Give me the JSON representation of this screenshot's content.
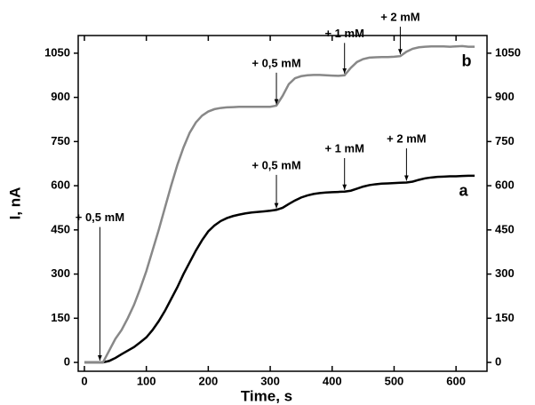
{
  "chart_data": {
    "type": "line",
    "x_label": "Time, s",
    "y_label": "I, nA",
    "x": [
      0,
      10,
      20,
      30,
      40,
      50,
      60,
      70,
      80,
      90,
      100,
      110,
      120,
      130,
      140,
      150,
      160,
      170,
      180,
      190,
      200,
      210,
      220,
      230,
      240,
      250,
      260,
      270,
      280,
      290,
      300,
      310,
      320,
      330,
      340,
      350,
      360,
      370,
      380,
      390,
      400,
      410,
      420,
      430,
      440,
      450,
      460,
      470,
      480,
      490,
      500,
      510,
      520,
      530,
      540,
      550,
      560,
      570,
      580,
      590,
      600,
      610,
      620,
      630
    ],
    "series": [
      {
        "name": "a",
        "color": "#000000",
        "values": [
          0,
          0,
          0,
          0,
          5,
          15,
          28,
          40,
          52,
          68,
          85,
          110,
          140,
          175,
          215,
          255,
          300,
          340,
          380,
          415,
          445,
          465,
          480,
          490,
          497,
          502,
          506,
          509,
          511,
          513,
          515,
          518,
          525,
          538,
          550,
          560,
          567,
          572,
          575,
          577,
          578,
          579,
          580,
          583,
          590,
          597,
          602,
          605,
          607,
          608,
          609,
          610,
          611,
          614,
          620,
          625,
          628,
          630,
          631,
          632,
          632,
          633,
          634,
          634
        ],
        "label_at": [
          612,
          580
        ]
      },
      {
        "name": "b",
        "color": "#888888",
        "values": [
          0,
          0,
          0,
          0,
          40,
          80,
          110,
          150,
          195,
          250,
          310,
          380,
          450,
          525,
          600,
          670,
          730,
          780,
          815,
          838,
          852,
          860,
          864,
          866,
          867,
          868,
          868,
          868,
          868,
          868,
          868,
          872,
          905,
          945,
          965,
          972,
          975,
          976,
          976,
          975,
          974,
          973,
          975,
          1000,
          1020,
          1030,
          1035,
          1036,
          1037,
          1037,
          1038,
          1040,
          1055,
          1065,
          1070,
          1072,
          1073,
          1073,
          1073,
          1072,
          1073,
          1074,
          1072,
          1072
        ],
        "label_at": [
          617,
          1020
        ]
      }
    ],
    "xlim": [
      -10,
      650
    ],
    "xticks": [
      0,
      100,
      200,
      300,
      400,
      500,
      600
    ],
    "ylim": [
      -30,
      1110
    ],
    "yticks": [
      0,
      150,
      300,
      450,
      600,
      750,
      900,
      1050
    ],
    "y2lim": [
      -30,
      1110
    ],
    "y2ticks": [
      0,
      150,
      300,
      450,
      600,
      750,
      900,
      1050
    ],
    "annotations": [
      {
        "text": "+ 0,5 mM",
        "xy": [
          25,
          0
        ],
        "xytext": [
          25,
          490
        ]
      },
      {
        "text": "+ 0,5 mM",
        "xy": [
          310,
          870
        ],
        "xytext": [
          310,
          1014
        ]
      },
      {
        "text": "+ 1 mM",
        "xy": [
          420,
          975
        ],
        "xytext": [
          420,
          1115
        ]
      },
      {
        "text": "+ 2 mM",
        "xy": [
          510,
          1040
        ],
        "xytext": [
          510,
          1170
        ]
      },
      {
        "text": "+ 0,5 mM",
        "xy": [
          310,
          517
        ],
        "xytext": [
          310,
          667
        ]
      },
      {
        "text": "+ 1 mM",
        "xy": [
          420,
          580
        ],
        "xytext": [
          420,
          724
        ]
      },
      {
        "text": "+ 2 mM",
        "xy": [
          520,
          611
        ],
        "xytext": [
          520,
          757
        ]
      }
    ]
  }
}
